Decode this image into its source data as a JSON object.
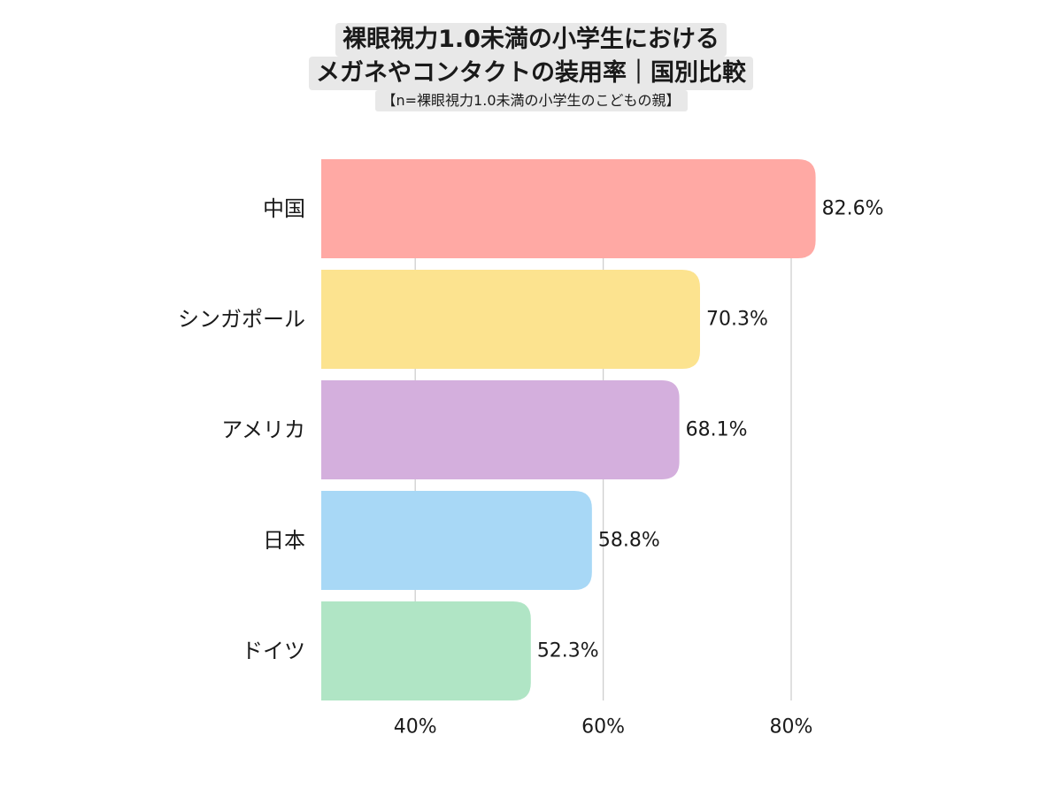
{
  "title_lines": [
    "裸眼視力1.0未満の小学生における",
    "メガネやコンタクトの装用率｜国別比較"
  ],
  "subtitle": "【n=裸眼視力1.0未満の小学生のこどもの親】",
  "chart_data": {
    "type": "bar",
    "orientation": "horizontal",
    "categories": [
      "中国",
      "シンガポール",
      "アメリカ",
      "日本",
      "ドイツ"
    ],
    "values": [
      82.6,
      70.3,
      68.1,
      58.8,
      52.3
    ],
    "value_labels": [
      "82.6%",
      "70.3%",
      "68.1%",
      "58.8%",
      "52.3%"
    ],
    "colors": [
      "#ffa9a4",
      "#fce38f",
      "#d4afdd",
      "#a8d8f6",
      "#b0e5c5"
    ],
    "xlim": [
      30,
      85
    ],
    "x_ticks": [
      40,
      60,
      80
    ],
    "x_tick_labels": [
      "40%",
      "60%",
      "80%"
    ],
    "grid": "vertical",
    "xlabel": "",
    "ylabel": ""
  }
}
